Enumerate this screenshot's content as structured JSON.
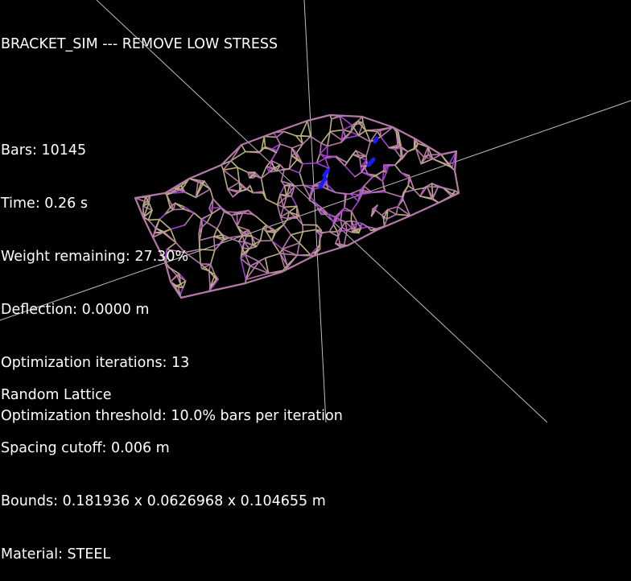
{
  "window": {
    "title": "BRACKET_SIM --- REMOVE LOW STRESS"
  },
  "stats": {
    "bars": "Bars: 10145",
    "time": "Time: 0.26 s",
    "weight_remaining": "Weight remaining: 27.30%",
    "deflection": "Deflection: 0.0000 m",
    "optimization_iterations": "Optimization iterations: 13",
    "optimization_threshold": "Optimization threshold: 10.0% bars per iteration"
  },
  "lattice": {
    "type": "Random Lattice",
    "spacing_cutoff": "Spacing cutoff: 0.006 m",
    "bounds": "Bounds: 0.181936 x 0.0626968 x 0.104655 m",
    "material": "Material: STEEL"
  },
  "colors": {
    "background": "#000000",
    "axis": "#bfbfbf",
    "bar_low": "#b9b27a",
    "bar_mid": "#b67aa8",
    "bar_high": "#a23fd0",
    "bar_critical": "#1a1aff",
    "text": "#ffffff"
  }
}
